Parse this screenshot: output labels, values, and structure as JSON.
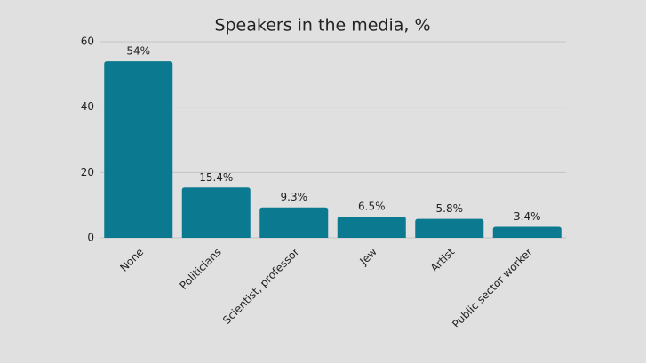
{
  "chart_data": {
    "type": "bar",
    "title": "Speakers in the media, %",
    "categories": [
      "None",
      "Politicians",
      "Scientist, professor",
      "Jew",
      "Artist",
      "Public sector worker"
    ],
    "values": [
      54,
      15.4,
      9.3,
      6.5,
      5.8,
      3.4
    ],
    "value_labels": [
      "54%",
      "15.4%",
      "9.3%",
      "6.5%",
      "5.8%",
      "3.4%"
    ],
    "color": "#0b7a91",
    "ylim": [
      0,
      60
    ],
    "yticks": [
      0,
      20,
      40,
      60
    ],
    "grid": true
  }
}
